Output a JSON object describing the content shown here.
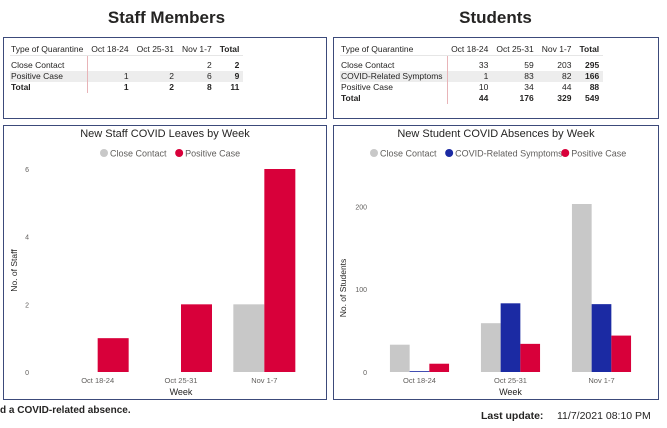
{
  "staff": {
    "heading": "Staff Members",
    "table": {
      "columns": [
        "Type of Quarantine",
        "Oct 18-24",
        "Oct 25-31",
        "Nov 1-7",
        "Total"
      ],
      "rows": [
        [
          "Close Contact",
          "",
          "",
          "2",
          "2"
        ],
        [
          "Positive Case",
          "1",
          "2",
          "6",
          "9"
        ]
      ],
      "total": [
        "Total",
        "1",
        "2",
        "8",
        "11"
      ]
    }
  },
  "students": {
    "heading": "Students",
    "table": {
      "columns": [
        "Type of Quarantine",
        "Oct 18-24",
        "Oct 25-31",
        "Nov 1-7",
        "Total"
      ],
      "rows": [
        [
          "Close Contact",
          "33",
          "59",
          "203",
          "295"
        ],
        [
          "COVID-Related Symptoms",
          "1",
          "83",
          "82",
          "166"
        ],
        [
          "Positive Case",
          "10",
          "34",
          "44",
          "88"
        ]
      ],
      "total": [
        "Total",
        "44",
        "176",
        "329",
        "549"
      ]
    }
  },
  "chart_data": [
    {
      "type": "bar",
      "title": "New Staff COVID Leaves by Week",
      "xlabel": "Week",
      "ylabel": "No. of Staff",
      "categories": [
        "Oct 18-24",
        "Oct 25-31",
        "Nov 1-7"
      ],
      "series": [
        {
          "name": "Close Contact",
          "color": "#c8c8c8",
          "values": [
            0,
            0,
            2
          ]
        },
        {
          "name": "Positive Case",
          "color": "#d8003a",
          "values": [
            1,
            2,
            6
          ]
        }
      ],
      "ylim": [
        0,
        6
      ],
      "yticks": [
        0,
        2,
        4,
        6
      ],
      "legend": "top-center",
      "grid": false
    },
    {
      "type": "bar",
      "title": "New Student COVID Absences by Week",
      "xlabel": "Week",
      "ylabel": "No. of Students",
      "categories": [
        "Oct 18-24",
        "Oct 25-31",
        "Nov 1-7"
      ],
      "series": [
        {
          "name": "Close Contact",
          "color": "#c8c8c8",
          "values": [
            33,
            59,
            203
          ]
        },
        {
          "name": "COVID-Related Symptoms",
          "color": "#1b2aa3",
          "values": [
            1,
            83,
            82
          ]
        },
        {
          "name": "Positive Case",
          "color": "#d8003a",
          "values": [
            10,
            34,
            44
          ]
        }
      ],
      "ylim": [
        0,
        203
      ],
      "yticks": [
        0,
        100,
        200
      ],
      "legend": "top-center",
      "grid": false
    }
  ],
  "footer": {
    "note": "d a COVID-related absence.",
    "last_update_label": "Last update:",
    "last_update_value": "11/7/2021 08:10 PM"
  }
}
